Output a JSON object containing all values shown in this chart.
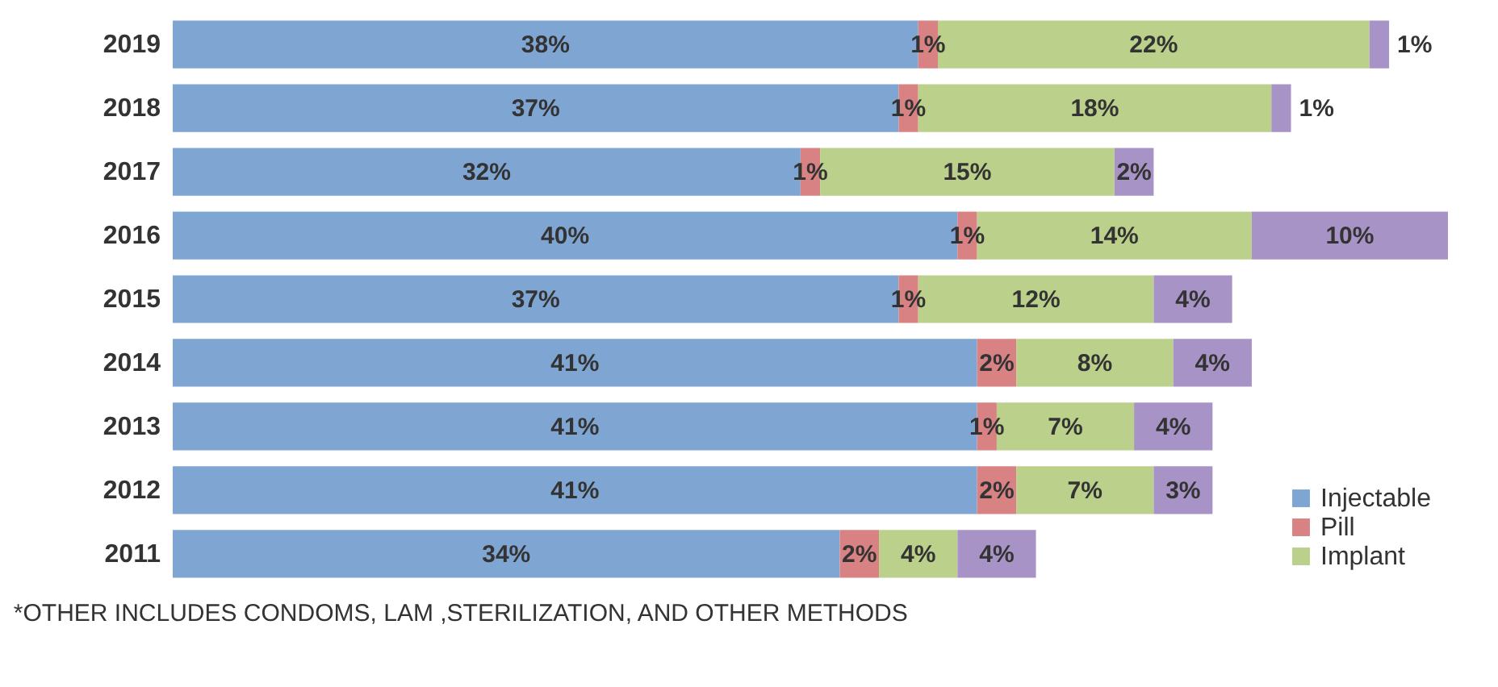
{
  "chart_data": {
    "type": "bar",
    "orientation": "horizontal",
    "stacked": true,
    "categories": [
      "2019",
      "2018",
      "2017",
      "2016",
      "2015",
      "2014",
      "2013",
      "2012",
      "2011"
    ],
    "series": [
      {
        "name": "Injectable",
        "color": "#7fa5d3",
        "values": [
          38,
          37,
          32,
          40,
          37,
          41,
          41,
          41,
          34
        ],
        "value_labels": [
          "38%",
          "37%",
          "32%",
          "40%",
          "37%",
          "41%",
          "41%",
          "41%",
          "34%"
        ]
      },
      {
        "name": "Pill",
        "color": "#d88283",
        "values": [
          1,
          1,
          1,
          1,
          1,
          2,
          1,
          2,
          2
        ],
        "value_labels": [
          "1%",
          "1%",
          "1%",
          "1%",
          "1%",
          "2%",
          "1%",
          "2%",
          "2%"
        ]
      },
      {
        "name": "Implant",
        "color": "#bad08b",
        "values": [
          22,
          18,
          15,
          14,
          12,
          8,
          7,
          7,
          4
        ],
        "value_labels": [
          "22%",
          "18%",
          "15%",
          "14%",
          "12%",
          "8%",
          "7%",
          "7%",
          "4%"
        ]
      },
      {
        "color": "#a793c5",
        "values": [
          1,
          1,
          2,
          10,
          4,
          4,
          4,
          3,
          4
        ],
        "value_labels": [
          "1%",
          "1%",
          "2%",
          "10%",
          "4%",
          "4%",
          "4%",
          "3%",
          "4%"
        ]
      }
    ],
    "legend": "bottom right",
    "tick_labels": "y",
    "annotations": [
      "*OTHER INCLUDES CONDOMS, LAM ,STERILIZATION, AND OTHER METHODS"
    ]
  }
}
